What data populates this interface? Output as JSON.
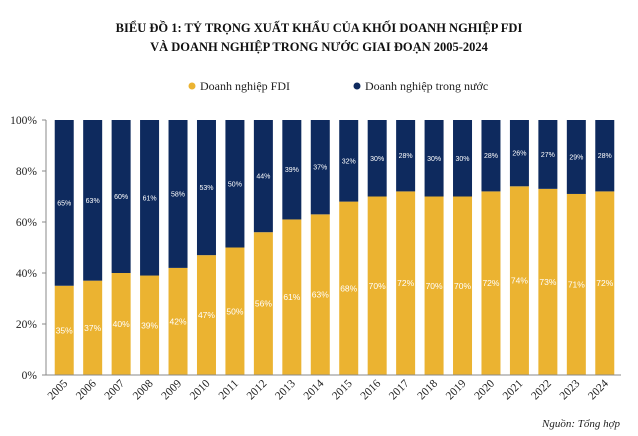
{
  "chart_data": {
    "type": "bar",
    "stacked": true,
    "title_line1": "BIỂU ĐỒ 1: TỶ TRỌNG XUẤT KHẨU CỦA KHỐI DOANH NGHIỆP FDI",
    "title_line2": "VÀ DOANH NGHIỆP TRONG NƯỚC GIAI ĐOẠN 2005-2024",
    "categories": [
      "2005",
      "2006",
      "2007",
      "2008",
      "2009",
      "2010",
      "2011",
      "2012",
      "2013",
      "2014",
      "2015",
      "2016",
      "2017",
      "2018",
      "2019",
      "2020",
      "2021",
      "2022",
      "2023",
      "2024"
    ],
    "series": [
      {
        "name": "Doanh nghiệp FDI",
        "color": "#EBB331",
        "values": [
          35,
          37,
          40,
          39,
          42,
          47,
          50,
          56,
          61,
          63,
          68,
          70,
          72,
          70,
          70,
          72,
          74,
          73,
          71,
          72
        ],
        "labels": [
          "35%",
          "37%",
          "40%",
          "39%",
          "42%",
          "47%",
          "50%",
          "56%",
          "61%",
          "63%",
          "68%",
          "70%",
          "72%",
          "70%",
          "70%",
          "72%",
          "74%",
          "73%",
          "71%",
          "72%"
        ]
      },
      {
        "name": "Doanh nghiệp trong nước",
        "color": "#0E2A5E",
        "values": [
          65,
          63,
          60,
          61,
          58,
          53,
          50,
          44,
          39,
          37,
          32,
          30,
          28,
          30,
          30,
          28,
          26,
          27,
          29,
          28
        ],
        "labels": [
          "65%",
          "63%",
          "60%",
          "61%",
          "58%",
          "53%",
          "50%",
          "44%",
          "39%",
          "37%",
          "32%",
          "30%",
          "28%",
          "30%",
          "30%",
          "28%",
          "26%",
          "27%",
          "29%",
          "28%"
        ]
      }
    ],
    "yticks": [
      "0%",
      "20%",
      "40%",
      "60%",
      "80%",
      "100%"
    ],
    "ylim": [
      0,
      100
    ],
    "legend_position": "top",
    "grid": false,
    "source": "Nguồn: Tổng hợp"
  }
}
